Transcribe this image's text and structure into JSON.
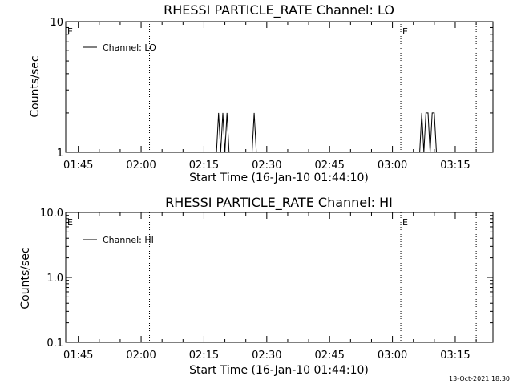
{
  "footer": {
    "timestamp": "13-Oct-2021 18:30"
  },
  "chart_data": [
    {
      "type": "line",
      "title": "RHESSI PARTICLE_RATE Channel: LO",
      "xlabel": "Start Time (16-Jan-10 01:44:10)",
      "ylabel": "Counts/sec",
      "y_scale": "log",
      "ylim": [
        1,
        10
      ],
      "y_ticks": [
        1,
        10
      ],
      "y_tick_labels": [
        "1",
        "10"
      ],
      "xlim": [
        "01:42",
        "03:24"
      ],
      "x_ticks": [
        "01:45",
        "02:00",
        "02:15",
        "02:30",
        "02:45",
        "03:00",
        "03:15"
      ],
      "legend": {
        "label": "Channel: LO",
        "position": "top-left"
      },
      "event_lines": [
        {
          "label": "E",
          "x": "01:42"
        },
        {
          "label": "",
          "x": "02:02"
        },
        {
          "label": "E",
          "x": "03:02"
        },
        {
          "label": "",
          "x": "03:20"
        }
      ],
      "series": [
        {
          "x": [
            "02:18",
            "02:18.5",
            "02:19",
            "02:19.5",
            "02:20",
            "02:20.5",
            "02:21",
            "02:21.5",
            "02:26.5",
            "02:27",
            "02:27.5",
            "03:06.5",
            "03:07",
            "03:07.5",
            "03:08",
            "03:08.5",
            "03:09",
            "03:09.5",
            "03:10",
            "03:10.5"
          ],
          "y": [
            1,
            2,
            1,
            2,
            1,
            2,
            1,
            1,
            1,
            2,
            1,
            1,
            2,
            1,
            2,
            2,
            1,
            2,
            2,
            1
          ]
        }
      ]
    },
    {
      "type": "line",
      "title": "RHESSI PARTICLE_RATE Channel: HI",
      "xlabel": "Start Time (16-Jan-10 01:44:10)",
      "ylabel": "Counts/sec",
      "y_scale": "log",
      "ylim": [
        0.1,
        10
      ],
      "y_ticks": [
        0.1,
        1,
        10
      ],
      "y_tick_labels": [
        "0.1",
        "1.0",
        "10.0"
      ],
      "xlim": [
        "01:42",
        "03:24"
      ],
      "x_ticks": [
        "01:45",
        "02:00",
        "02:15",
        "02:30",
        "02:45",
        "03:00",
        "03:15"
      ],
      "legend": {
        "label": "Channel: HI",
        "position": "top-left"
      },
      "event_lines": [
        {
          "label": "E",
          "x": "01:42"
        },
        {
          "label": "",
          "x": "02:02"
        },
        {
          "label": "E",
          "x": "03:02"
        },
        {
          "label": "",
          "x": "03:20"
        }
      ],
      "series": [
        {
          "x": [],
          "y": []
        }
      ]
    }
  ]
}
